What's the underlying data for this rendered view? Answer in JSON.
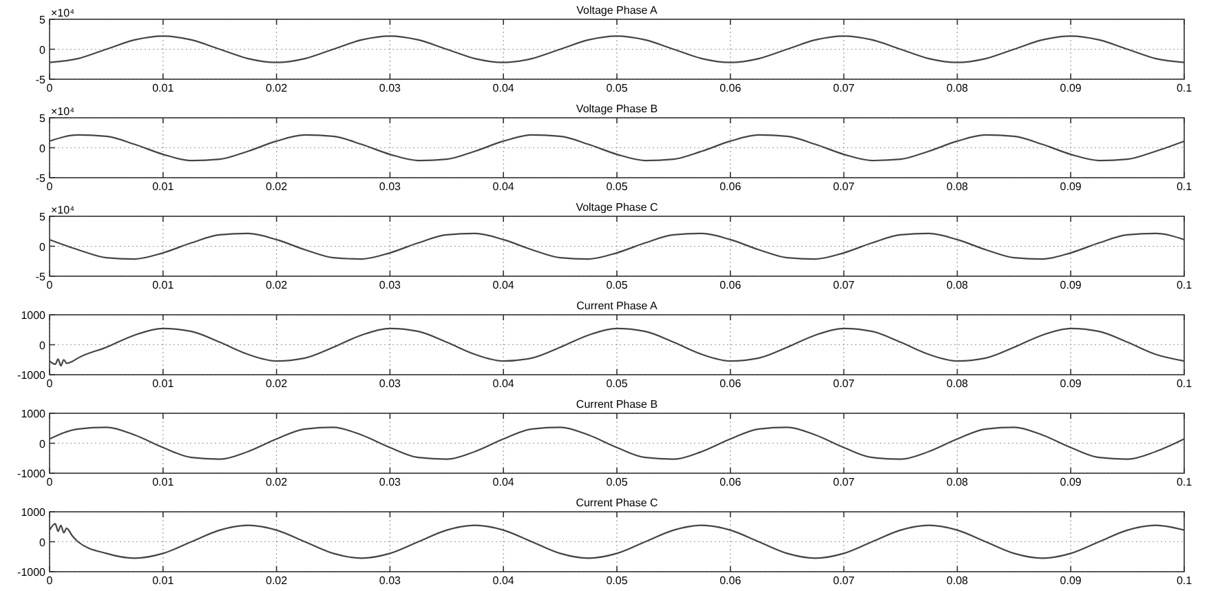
{
  "chart_data": [
    {
      "type": "line",
      "title": "Voltage Phase A",
      "annotations": [
        "×10⁴"
      ],
      "xlim": [
        0,
        0.1
      ],
      "xticks": [
        0,
        0.01,
        0.02,
        0.03,
        0.04,
        0.05,
        0.06,
        0.07,
        0.08,
        0.09,
        0.1
      ],
      "ylim": [
        -5,
        5
      ],
      "yticks": [
        -5,
        0,
        5
      ],
      "grid": true,
      "x": [
        0,
        0.0025,
        0.005,
        0.0075,
        0.01,
        0.0125,
        0.015,
        0.0175,
        0.02,
        0.0225,
        0.025,
        0.0275,
        0.03,
        0.0325,
        0.035,
        0.0375,
        0.04,
        0.0425,
        0.045,
        0.0475,
        0.05,
        0.0525,
        0.055,
        0.0575,
        0.06,
        0.0625,
        0.065,
        0.0675,
        0.07,
        0.0725,
        0.075,
        0.0775,
        0.08,
        0.0825,
        0.085,
        0.0875,
        0.09,
        0.0925,
        0.095,
        0.0975,
        0.1
      ],
      "series": [
        {
          "color": "#444444",
          "values": [
            -2.2,
            -1.56,
            0,
            1.56,
            2.2,
            1.56,
            0,
            -1.56,
            -2.2,
            -1.56,
            0,
            1.56,
            2.2,
            1.56,
            0,
            -1.56,
            -2.2,
            -1.56,
            0,
            1.56,
            2.2,
            1.56,
            0,
            -1.56,
            -2.2,
            -1.56,
            0,
            1.56,
            2.2,
            1.56,
            0,
            -1.56,
            -2.2,
            -1.56,
            0,
            1.56,
            2.2,
            1.56,
            0,
            -1.56,
            -2.2
          ]
        }
      ]
    },
    {
      "type": "line",
      "title": "Voltage Phase B",
      "annotations": [
        "×10⁴"
      ],
      "xlim": [
        0,
        0.1
      ],
      "xticks": [
        0,
        0.01,
        0.02,
        0.03,
        0.04,
        0.05,
        0.06,
        0.07,
        0.08,
        0.09,
        0.1
      ],
      "ylim": [
        -5,
        5
      ],
      "yticks": [
        -5,
        0,
        5
      ],
      "grid": true,
      "x": [
        0,
        0.0025,
        0.005,
        0.0075,
        0.01,
        0.0125,
        0.015,
        0.0175,
        0.02,
        0.0225,
        0.025,
        0.0275,
        0.03,
        0.0325,
        0.035,
        0.0375,
        0.04,
        0.0425,
        0.045,
        0.0475,
        0.05,
        0.0525,
        0.055,
        0.0575,
        0.06,
        0.0625,
        0.065,
        0.0675,
        0.07,
        0.0725,
        0.075,
        0.0775,
        0.08,
        0.0825,
        0.085,
        0.0875,
        0.09,
        0.0925,
        0.095,
        0.0975,
        0.1
      ],
      "series": [
        {
          "color": "#444444",
          "values": [
            1.1,
            2.13,
            1.91,
            0.57,
            -1.1,
            -2.13,
            -1.91,
            -0.57,
            1.1,
            2.13,
            1.91,
            0.57,
            -1.1,
            -2.13,
            -1.91,
            -0.57,
            1.1,
            2.13,
            1.91,
            0.57,
            -1.1,
            -2.13,
            -1.91,
            -0.57,
            1.1,
            2.13,
            1.91,
            0.57,
            -1.1,
            -2.13,
            -1.91,
            -0.57,
            1.1,
            2.13,
            1.91,
            0.57,
            -1.1,
            -2.13,
            -1.91,
            -0.57,
            1.1
          ]
        }
      ]
    },
    {
      "type": "line",
      "title": "Voltage Phase C",
      "annotations": [
        "×10⁴"
      ],
      "xlim": [
        0,
        0.1
      ],
      "xticks": [
        0,
        0.01,
        0.02,
        0.03,
        0.04,
        0.05,
        0.06,
        0.07,
        0.08,
        0.09,
        0.1
      ],
      "ylim": [
        -5,
        5
      ],
      "yticks": [
        -5,
        0,
        5
      ],
      "grid": true,
      "x": [
        0,
        0.0025,
        0.005,
        0.0075,
        0.01,
        0.0125,
        0.015,
        0.0175,
        0.02,
        0.0225,
        0.025,
        0.0275,
        0.03,
        0.0325,
        0.035,
        0.0375,
        0.04,
        0.0425,
        0.045,
        0.0475,
        0.05,
        0.0525,
        0.055,
        0.0575,
        0.06,
        0.0625,
        0.065,
        0.0675,
        0.07,
        0.0725,
        0.075,
        0.0775,
        0.08,
        0.0825,
        0.085,
        0.0875,
        0.09,
        0.0925,
        0.095,
        0.0975,
        0.1
      ],
      "series": [
        {
          "color": "#444444",
          "values": [
            1.1,
            -0.57,
            -1.91,
            -2.13,
            -1.1,
            0.57,
            1.91,
            2.13,
            1.1,
            -0.57,
            -1.91,
            -2.13,
            -1.1,
            0.57,
            1.91,
            2.13,
            1.1,
            -0.57,
            -1.91,
            -2.13,
            -1.1,
            0.57,
            1.91,
            2.13,
            1.1,
            -0.57,
            -1.91,
            -2.13,
            -1.1,
            0.57,
            1.91,
            2.13,
            1.1,
            -0.57,
            -1.91,
            -2.13,
            -1.1,
            0.57,
            1.91,
            2.13,
            1.1
          ]
        }
      ]
    },
    {
      "type": "line",
      "title": "Current Phase A",
      "xlim": [
        0,
        0.1
      ],
      "xticks": [
        0,
        0.01,
        0.02,
        0.03,
        0.04,
        0.05,
        0.06,
        0.07,
        0.08,
        0.09,
        0.1
      ],
      "ylim": [
        -1000,
        1000
      ],
      "yticks": [
        -1000,
        0,
        1000
      ],
      "grid": true,
      "x": [
        0,
        0.0005,
        0.00075,
        0.001,
        0.00125,
        0.0015,
        0.002,
        0.0025,
        0.005,
        0.0075,
        0.01,
        0.0125,
        0.015,
        0.0175,
        0.02,
        0.0225,
        0.025,
        0.0275,
        0.03,
        0.0325,
        0.035,
        0.0375,
        0.04,
        0.0425,
        0.045,
        0.0475,
        0.05,
        0.0525,
        0.055,
        0.0575,
        0.06,
        0.0625,
        0.065,
        0.0675,
        0.07,
        0.0725,
        0.075,
        0.0775,
        0.08,
        0.0825,
        0.085,
        0.0875,
        0.09,
        0.0925,
        0.095,
        0.0975,
        0.1
      ],
      "series": [
        {
          "color": "#444444",
          "values": [
            -543,
            -650,
            -480,
            -700,
            -500,
            -620,
            -560,
            -445,
            -86,
            323,
            543,
            445,
            86,
            -323,
            -543,
            -445,
            -86,
            323,
            543,
            445,
            86,
            -323,
            -543,
            -445,
            -86,
            323,
            543,
            445,
            86,
            -323,
            -543,
            -445,
            -86,
            323,
            543,
            445,
            86,
            -323,
            -543,
            -445,
            -86,
            323,
            543,
            445,
            86,
            -323,
            -543
          ]
        }
      ]
    },
    {
      "type": "line",
      "title": "Current Phase B",
      "xlim": [
        0,
        0.1
      ],
      "xticks": [
        0,
        0.01,
        0.02,
        0.03,
        0.04,
        0.05,
        0.06,
        0.07,
        0.08,
        0.09,
        0.1
      ],
      "ylim": [
        -1000,
        1000
      ],
      "yticks": [
        -1000,
        0,
        1000
      ],
      "grid": true,
      "x": [
        0,
        0.0025,
        0.005,
        0.0075,
        0.01,
        0.0125,
        0.015,
        0.0175,
        0.02,
        0.0225,
        0.025,
        0.0275,
        0.03,
        0.0325,
        0.035,
        0.0375,
        0.04,
        0.0425,
        0.045,
        0.0475,
        0.05,
        0.0525,
        0.055,
        0.0575,
        0.06,
        0.0625,
        0.065,
        0.0675,
        0.07,
        0.0725,
        0.075,
        0.0775,
        0.08,
        0.0825,
        0.085,
        0.0875,
        0.09,
        0.0925,
        0.095,
        0.0975,
        0.1
      ],
      "series": [
        {
          "color": "#444444",
          "values": [
            142,
            476,
            531,
            275,
            -142,
            -476,
            -531,
            -275,
            142,
            476,
            531,
            275,
            -142,
            -476,
            -531,
            -275,
            142,
            476,
            531,
            275,
            -142,
            -476,
            -531,
            -275,
            142,
            476,
            531,
            275,
            -142,
            -476,
            -531,
            -275,
            142,
            476,
            531,
            275,
            -142,
            -476,
            -531,
            -275,
            142
          ]
        }
      ]
    },
    {
      "type": "line",
      "title": "Current Phase C",
      "xlim": [
        0,
        0.1
      ],
      "xticks": [
        0,
        0.01,
        0.02,
        0.03,
        0.04,
        0.05,
        0.06,
        0.07,
        0.08,
        0.09,
        0.1
      ],
      "ylim": [
        -1000,
        1000
      ],
      "yticks": [
        -1000,
        0,
        1000
      ],
      "grid": true,
      "x": [
        0,
        0.0005,
        0.00075,
        0.001,
        0.00125,
        0.0015,
        0.002,
        0.0025,
        0.005,
        0.0075,
        0.01,
        0.0125,
        0.015,
        0.0175,
        0.02,
        0.0225,
        0.025,
        0.0275,
        0.03,
        0.0325,
        0.035,
        0.0375,
        0.04,
        0.0425,
        0.045,
        0.0475,
        0.05,
        0.0525,
        0.055,
        0.0575,
        0.06,
        0.0625,
        0.065,
        0.0675,
        0.07,
        0.0725,
        0.075,
        0.0775,
        0.08,
        0.0825,
        0.085,
        0.0875,
        0.09,
        0.0925,
        0.095,
        0.0975,
        0.1
      ],
      "series": [
        {
          "color": "#444444",
          "values": [
            389,
            600,
            350,
            550,
            300,
            450,
            200,
            0,
            -389,
            -550,
            -389,
            0,
            389,
            550,
            389,
            0,
            -389,
            -550,
            -389,
            0,
            389,
            550,
            389,
            0,
            -389,
            -550,
            -389,
            0,
            389,
            550,
            389,
            0,
            -389,
            -550,
            -389,
            0,
            389,
            550,
            389,
            0,
            -389,
            -550,
            -389,
            0,
            389,
            550,
            389
          ]
        }
      ]
    }
  ]
}
